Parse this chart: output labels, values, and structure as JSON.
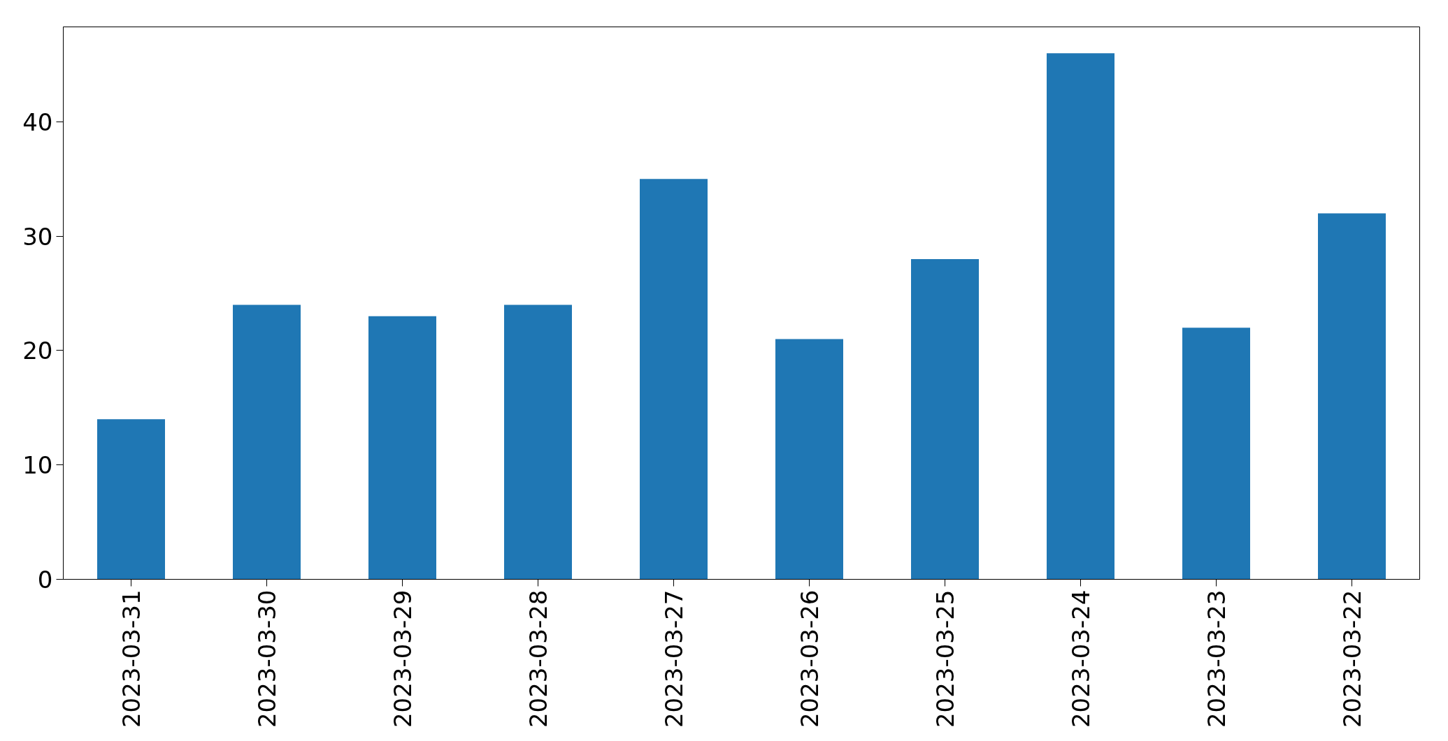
{
  "chart_data": {
    "type": "bar",
    "categories": [
      "2023-03-31",
      "2023-03-30",
      "2023-03-29",
      "2023-03-28",
      "2023-03-27",
      "2023-03-26",
      "2023-03-25",
      "2023-03-24",
      "2023-03-23",
      "2023-03-22"
    ],
    "values": [
      14,
      24,
      23,
      24,
      35,
      21,
      28,
      46,
      22,
      32
    ],
    "color": "#1f77b4",
    "ylim": [
      0,
      48.3
    ],
    "yticks": [
      0,
      10,
      20,
      30,
      40
    ],
    "grid": false
  }
}
